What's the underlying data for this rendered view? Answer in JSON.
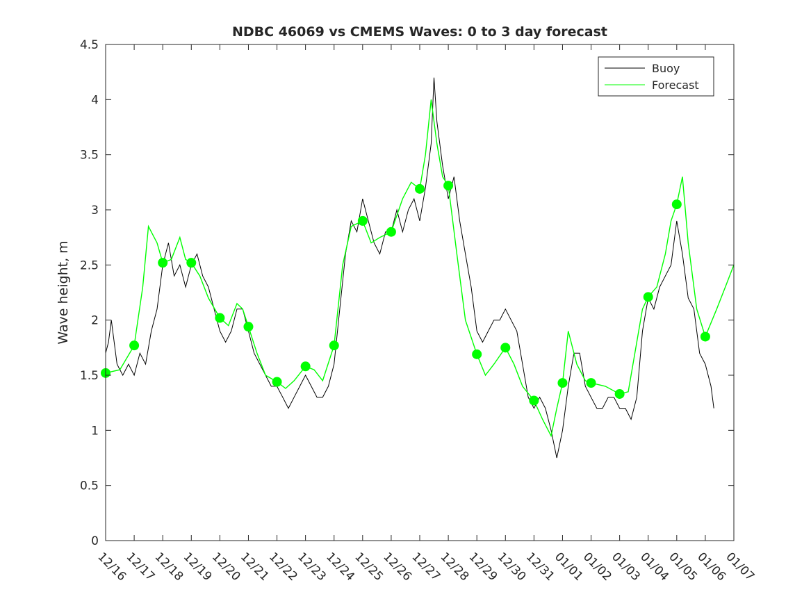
{
  "chart_data": {
    "type": "line",
    "title": "NDBC 46069 vs CMEMS Waves: 0 to 3 day forecast",
    "xlabel": "",
    "ylabel": "Wave height, m",
    "xlim": [
      0,
      22
    ],
    "ylim": [
      0,
      4.5
    ],
    "grid": false,
    "legend_position": "top-right",
    "x_tick_labels": [
      "12/16",
      "12/17",
      "12/18",
      "12/19",
      "12/20",
      "12/21",
      "12/22",
      "12/23",
      "12/24",
      "12/25",
      "12/26",
      "12/27",
      "12/28",
      "12/29",
      "12/30",
      "12/31",
      "01/01",
      "01/02",
      "01/03",
      "01/04",
      "01/05",
      "01/06",
      "01/07"
    ],
    "y_ticks": [
      0,
      0.5,
      1,
      1.5,
      2,
      2.5,
      3,
      3.5,
      4,
      4.5
    ],
    "y_tick_labels": [
      "0",
      "0.5",
      "1",
      "1.5",
      "2",
      "2.5",
      "3",
      "3.5",
      "4",
      "4.5"
    ],
    "colors": {
      "buoy": "#000000",
      "forecast": "#00ff00",
      "axes": "#262626"
    },
    "legend": [
      {
        "label": "Buoy",
        "color": "#000000"
      },
      {
        "label": "Forecast",
        "color": "#00ff00"
      }
    ],
    "series": [
      {
        "name": "Buoy",
        "x_unit": "days since 12/16",
        "points": [
          [
            0,
            1.7
          ],
          [
            0.1,
            1.8
          ],
          [
            0.2,
            2.0
          ],
          [
            0.3,
            1.8
          ],
          [
            0.4,
            1.6
          ],
          [
            0.6,
            1.5
          ],
          [
            0.8,
            1.6
          ],
          [
            1.0,
            1.5
          ],
          [
            1.2,
            1.7
          ],
          [
            1.4,
            1.6
          ],
          [
            1.6,
            1.9
          ],
          [
            1.8,
            2.1
          ],
          [
            2.0,
            2.5
          ],
          [
            2.2,
            2.7
          ],
          [
            2.4,
            2.4
          ],
          [
            2.6,
            2.5
          ],
          [
            2.8,
            2.3
          ],
          [
            3.0,
            2.5
          ],
          [
            3.2,
            2.6
          ],
          [
            3.4,
            2.4
          ],
          [
            3.6,
            2.3
          ],
          [
            3.8,
            2.1
          ],
          [
            4.0,
            1.9
          ],
          [
            4.2,
            1.8
          ],
          [
            4.4,
            1.9
          ],
          [
            4.6,
            2.1
          ],
          [
            4.8,
            2.1
          ],
          [
            5.0,
            1.9
          ],
          [
            5.2,
            1.7
          ],
          [
            5.4,
            1.6
          ],
          [
            5.6,
            1.5
          ],
          [
            5.8,
            1.4
          ],
          [
            6.0,
            1.4
          ],
          [
            6.2,
            1.3
          ],
          [
            6.4,
            1.2
          ],
          [
            6.6,
            1.3
          ],
          [
            6.8,
            1.4
          ],
          [
            7.0,
            1.5
          ],
          [
            7.2,
            1.4
          ],
          [
            7.4,
            1.3
          ],
          [
            7.6,
            1.3
          ],
          [
            7.8,
            1.4
          ],
          [
            8.0,
            1.6
          ],
          [
            8.2,
            2.1
          ],
          [
            8.4,
            2.6
          ],
          [
            8.6,
            2.9
          ],
          [
            8.8,
            2.8
          ],
          [
            9.0,
            3.1
          ],
          [
            9.2,
            2.9
          ],
          [
            9.4,
            2.7
          ],
          [
            9.6,
            2.6
          ],
          [
            9.8,
            2.8
          ],
          [
            10.0,
            2.8
          ],
          [
            10.2,
            3.0
          ],
          [
            10.4,
            2.8
          ],
          [
            10.6,
            3.0
          ],
          [
            10.8,
            3.1
          ],
          [
            11.0,
            2.9
          ],
          [
            11.2,
            3.2
          ],
          [
            11.4,
            3.6
          ],
          [
            11.5,
            4.2
          ],
          [
            11.6,
            3.8
          ],
          [
            11.8,
            3.4
          ],
          [
            12.0,
            3.1
          ],
          [
            12.2,
            3.3
          ],
          [
            12.4,
            2.9
          ],
          [
            12.6,
            2.6
          ],
          [
            12.8,
            2.3
          ],
          [
            13.0,
            1.9
          ],
          [
            13.2,
            1.8
          ],
          [
            13.4,
            1.9
          ],
          [
            13.6,
            2.0
          ],
          [
            13.8,
            2.0
          ],
          [
            14.0,
            2.1
          ],
          [
            14.2,
            2.0
          ],
          [
            14.4,
            1.9
          ],
          [
            14.6,
            1.6
          ],
          [
            14.8,
            1.3
          ],
          [
            15.0,
            1.2
          ],
          [
            15.2,
            1.3
          ],
          [
            15.4,
            1.2
          ],
          [
            15.6,
            1.0
          ],
          [
            15.8,
            0.75
          ],
          [
            16.0,
            1.0
          ],
          [
            16.2,
            1.4
          ],
          [
            16.4,
            1.7
          ],
          [
            16.6,
            1.7
          ],
          [
            16.8,
            1.4
          ],
          [
            17.0,
            1.3
          ],
          [
            17.2,
            1.2
          ],
          [
            17.4,
            1.2
          ],
          [
            17.6,
            1.3
          ],
          [
            17.8,
            1.3
          ],
          [
            18.0,
            1.2
          ],
          [
            18.2,
            1.2
          ],
          [
            18.4,
            1.1
          ],
          [
            18.6,
            1.3
          ],
          [
            18.8,
            1.9
          ],
          [
            19.0,
            2.2
          ],
          [
            19.2,
            2.1
          ],
          [
            19.4,
            2.3
          ],
          [
            19.6,
            2.4
          ],
          [
            19.8,
            2.5
          ],
          [
            20.0,
            2.9
          ],
          [
            20.2,
            2.6
          ],
          [
            20.4,
            2.2
          ],
          [
            20.6,
            2.1
          ],
          [
            20.8,
            1.7
          ],
          [
            21.0,
            1.6
          ],
          [
            21.2,
            1.4
          ],
          [
            21.3,
            1.2
          ]
        ]
      },
      {
        "name": "Forecast",
        "x_unit": "days since 12/16",
        "points": [
          [
            0,
            1.52
          ],
          [
            0.5,
            1.55
          ],
          [
            1.0,
            1.77
          ],
          [
            1.3,
            2.3
          ],
          [
            1.5,
            2.85
          ],
          [
            1.8,
            2.7
          ],
          [
            2.0,
            2.52
          ],
          [
            2.3,
            2.55
          ],
          [
            2.6,
            2.75
          ],
          [
            2.8,
            2.55
          ],
          [
            3.0,
            2.52
          ],
          [
            3.3,
            2.4
          ],
          [
            3.6,
            2.2
          ],
          [
            4.0,
            2.02
          ],
          [
            4.3,
            1.95
          ],
          [
            4.6,
            2.15
          ],
          [
            4.8,
            2.1
          ],
          [
            5.0,
            1.94
          ],
          [
            5.3,
            1.7
          ],
          [
            5.6,
            1.5
          ],
          [
            6.0,
            1.44
          ],
          [
            6.3,
            1.38
          ],
          [
            6.6,
            1.45
          ],
          [
            7.0,
            1.58
          ],
          [
            7.3,
            1.55
          ],
          [
            7.6,
            1.45
          ],
          [
            8.0,
            1.77
          ],
          [
            8.3,
            2.5
          ],
          [
            8.6,
            2.85
          ],
          [
            9.0,
            2.9
          ],
          [
            9.3,
            2.7
          ],
          [
            9.6,
            2.75
          ],
          [
            10.0,
            2.8
          ],
          [
            10.4,
            3.1
          ],
          [
            10.7,
            3.25
          ],
          [
            11.0,
            3.19
          ],
          [
            11.2,
            3.5
          ],
          [
            11.4,
            4.0
          ],
          [
            11.6,
            3.6
          ],
          [
            11.8,
            3.3
          ],
          [
            12.0,
            3.22
          ],
          [
            12.3,
            2.6
          ],
          [
            12.6,
            2.0
          ],
          [
            13.0,
            1.69
          ],
          [
            13.3,
            1.5
          ],
          [
            13.6,
            1.6
          ],
          [
            14.0,
            1.75
          ],
          [
            14.3,
            1.6
          ],
          [
            14.6,
            1.4
          ],
          [
            15.0,
            1.27
          ],
          [
            15.3,
            1.1
          ],
          [
            15.6,
            0.95
          ],
          [
            15.8,
            1.2
          ],
          [
            16.0,
            1.43
          ],
          [
            16.2,
            1.9
          ],
          [
            16.5,
            1.6
          ],
          [
            16.8,
            1.45
          ],
          [
            17.0,
            1.43
          ],
          [
            17.5,
            1.4
          ],
          [
            18.0,
            1.33
          ],
          [
            18.3,
            1.35
          ],
          [
            18.6,
            1.8
          ],
          [
            18.8,
            2.1
          ],
          [
            19.0,
            2.21
          ],
          [
            19.3,
            2.3
          ],
          [
            19.6,
            2.6
          ],
          [
            19.8,
            2.9
          ],
          [
            20.0,
            3.05
          ],
          [
            20.2,
            3.3
          ],
          [
            20.4,
            2.7
          ],
          [
            20.7,
            2.1
          ],
          [
            21.0,
            1.85
          ],
          [
            21.4,
            2.1
          ],
          [
            21.7,
            2.3
          ],
          [
            22.0,
            2.5
          ]
        ]
      }
    ]
  }
}
